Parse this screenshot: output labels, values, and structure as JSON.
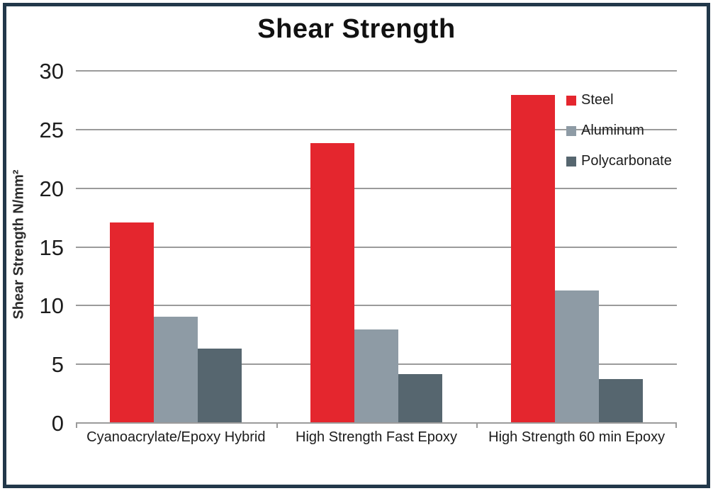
{
  "chart_data": {
    "type": "bar",
    "title": "Shear Strength",
    "xlabel": "",
    "ylabel": "Shear Strength N/mm²",
    "categories": [
      "Cyanoacrylate/Epoxy Hybrid",
      "High Strength Fast Epoxy",
      "High Strength 60 min Epoxy"
    ],
    "series": [
      {
        "name": "Steel",
        "color": "#e4262e",
        "values": [
          17.0,
          23.8,
          27.9
        ]
      },
      {
        "name": "Aluminum",
        "color": "#8e9ba5",
        "values": [
          9.0,
          7.9,
          11.2
        ]
      },
      {
        "name": "Polycarbonate",
        "color": "#56666f",
        "values": [
          6.3,
          4.1,
          3.7
        ]
      }
    ],
    "ylim": [
      0,
      30
    ],
    "ytick_interval": 5,
    "grid": true,
    "legend_position": "upper-right"
  },
  "colors": {
    "frame_border": "#22384a",
    "gridline": "#9b9b9b",
    "text": "#1c1c1c",
    "background": "#ffffff"
  }
}
